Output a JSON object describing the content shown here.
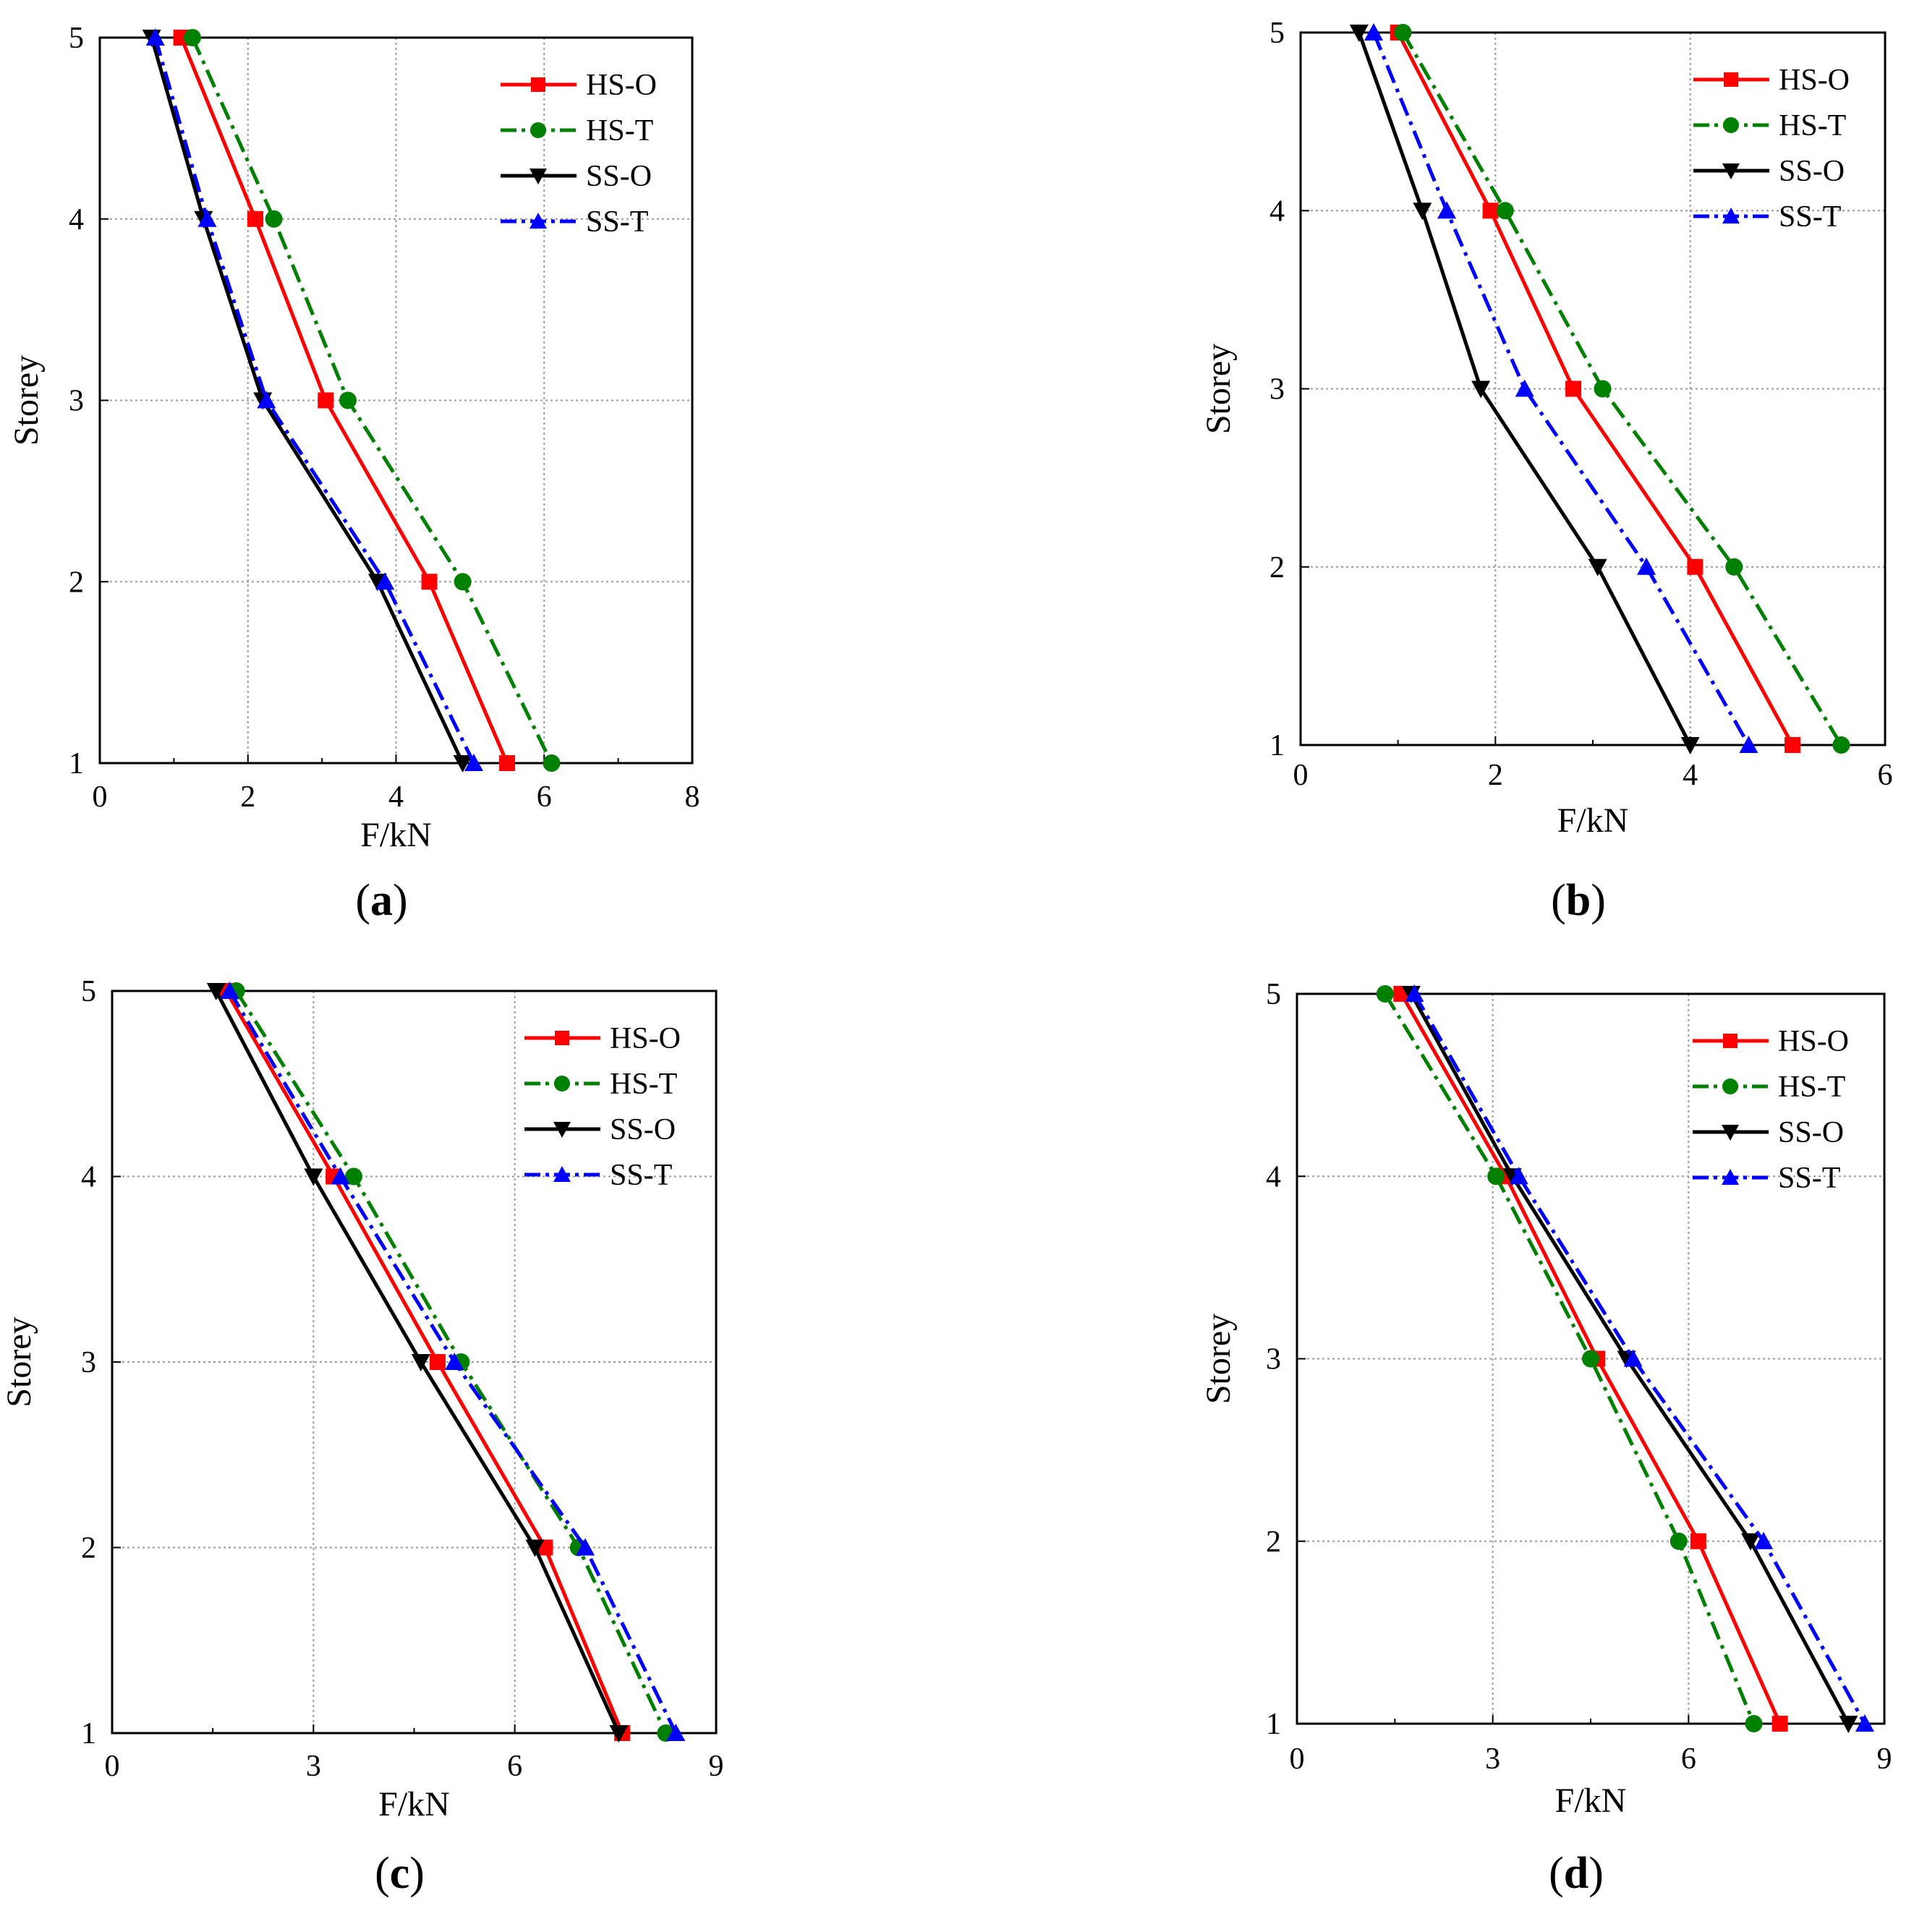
{
  "chart_data": [
    {
      "type": "line",
      "panel_label": "a",
      "xlabel": "F/kN",
      "ylabel": "Storey",
      "xlim": [
        0,
        8
      ],
      "ylim": [
        1,
        5
      ],
      "xticks": [
        0,
        2,
        4,
        6,
        8
      ],
      "yticks": [
        1,
        2,
        3,
        4,
        5
      ],
      "grid": true,
      "legend": "top-right",
      "series": [
        {
          "name": "HS-O",
          "color": "#ff0000",
          "dash": "solid",
          "marker": "square",
          "points": [
            [
              1.1,
              5
            ],
            [
              2.1,
              4
            ],
            [
              3.05,
              3
            ],
            [
              4.45,
              2
            ],
            [
              5.5,
              1
            ]
          ]
        },
        {
          "name": "HS-T",
          "color": "#008000",
          "dash": "dashdot",
          "marker": "circle",
          "points": [
            [
              1.25,
              5
            ],
            [
              2.35,
              4
            ],
            [
              3.35,
              3
            ],
            [
              4.9,
              2
            ],
            [
              6.1,
              1
            ]
          ]
        },
        {
          "name": "SS-O",
          "color": "#000000",
          "dash": "solid",
          "marker": "triangle-down",
          "points": [
            [
              0.7,
              5
            ],
            [
              1.4,
              4
            ],
            [
              2.2,
              3
            ],
            [
              3.75,
              2
            ],
            [
              4.9,
              1
            ]
          ]
        },
        {
          "name": "SS-T",
          "color": "#0000ff",
          "dash": "dashdot",
          "marker": "triangle-up",
          "points": [
            [
              0.75,
              5
            ],
            [
              1.45,
              4
            ],
            [
              2.25,
              3
            ],
            [
              3.85,
              2
            ],
            [
              5.05,
              1
            ]
          ]
        }
      ]
    },
    {
      "type": "line",
      "panel_label": "b",
      "xlabel": "F/kN",
      "ylabel": "Storey",
      "xlim": [
        0,
        6
      ],
      "ylim": [
        1,
        5
      ],
      "xticks": [
        0,
        2,
        4,
        6
      ],
      "yticks": [
        1,
        2,
        3,
        4,
        5
      ],
      "grid": true,
      "legend": "top-right",
      "series": [
        {
          "name": "HS-O",
          "color": "#ff0000",
          "dash": "solid",
          "marker": "square",
          "points": [
            [
              1.0,
              5
            ],
            [
              1.95,
              4
            ],
            [
              2.8,
              3
            ],
            [
              4.05,
              2
            ],
            [
              5.05,
              1
            ]
          ]
        },
        {
          "name": "HS-T",
          "color": "#008000",
          "dash": "dashdot",
          "marker": "circle",
          "points": [
            [
              1.05,
              5
            ],
            [
              2.1,
              4
            ],
            [
              3.1,
              3
            ],
            [
              4.45,
              2
            ],
            [
              5.55,
              1
            ]
          ]
        },
        {
          "name": "SS-O",
          "color": "#000000",
          "dash": "solid",
          "marker": "triangle-down",
          "points": [
            [
              0.6,
              5
            ],
            [
              1.25,
              4
            ],
            [
              1.85,
              3
            ],
            [
              3.05,
              2
            ],
            [
              4.0,
              1
            ]
          ]
        },
        {
          "name": "SS-T",
          "color": "#0000ff",
          "dash": "dashdot",
          "marker": "triangle-up",
          "points": [
            [
              0.75,
              5
            ],
            [
              1.5,
              4
            ],
            [
              2.3,
              3
            ],
            [
              3.55,
              2
            ],
            [
              4.6,
              1
            ]
          ]
        }
      ]
    },
    {
      "type": "line",
      "panel_label": "c",
      "xlabel": "F/kN",
      "ylabel": "Storey",
      "xlim": [
        0,
        9
      ],
      "ylim": [
        1,
        5
      ],
      "xticks": [
        0,
        3,
        6,
        9
      ],
      "yticks": [
        1,
        2,
        3,
        4,
        5
      ],
      "grid": true,
      "legend": "top-right",
      "series": [
        {
          "name": "HS-O",
          "color": "#ff0000",
          "dash": "solid",
          "marker": "square",
          "points": [
            [
              1.7,
              5
            ],
            [
              3.3,
              4
            ],
            [
              4.85,
              3
            ],
            [
              6.45,
              2
            ],
            [
              7.6,
              1
            ]
          ]
        },
        {
          "name": "HS-T",
          "color": "#008000",
          "dash": "dashdot",
          "marker": "circle",
          "points": [
            [
              1.85,
              5
            ],
            [
              3.6,
              4
            ],
            [
              5.2,
              3
            ],
            [
              6.95,
              2
            ],
            [
              8.25,
              1
            ]
          ]
        },
        {
          "name": "SS-O",
          "color": "#000000",
          "dash": "solid",
          "marker": "triangle-down",
          "points": [
            [
              1.55,
              5
            ],
            [
              3.0,
              4
            ],
            [
              4.6,
              3
            ],
            [
              6.3,
              2
            ],
            [
              7.55,
              1
            ]
          ]
        },
        {
          "name": "SS-T",
          "color": "#0000ff",
          "dash": "dashdot",
          "marker": "triangle-up",
          "points": [
            [
              1.75,
              5
            ],
            [
              3.4,
              4
            ],
            [
              5.1,
              3
            ],
            [
              7.05,
              2
            ],
            [
              8.4,
              1
            ]
          ]
        }
      ]
    },
    {
      "type": "line",
      "panel_label": "d",
      "xlabel": "F/kN",
      "ylabel": "Storey",
      "xlim": [
        0,
        9
      ],
      "ylim": [
        1,
        5
      ],
      "xticks": [
        0,
        3,
        6,
        9
      ],
      "yticks": [
        1,
        2,
        3,
        4,
        5
      ],
      "grid": true,
      "legend": "top-right",
      "series": [
        {
          "name": "HS-O",
          "color": "#ff0000",
          "dash": "solid",
          "marker": "square",
          "points": [
            [
              1.6,
              5
            ],
            [
              3.2,
              4
            ],
            [
              4.6,
              3
            ],
            [
              6.15,
              2
            ],
            [
              7.4,
              1
            ]
          ]
        },
        {
          "name": "HS-T",
          "color": "#008000",
          "dash": "dashdot",
          "marker": "circle",
          "points": [
            [
              1.35,
              5
            ],
            [
              3.05,
              4
            ],
            [
              4.5,
              3
            ],
            [
              5.85,
              2
            ],
            [
              7.0,
              1
            ]
          ]
        },
        {
          "name": "SS-O",
          "color": "#000000",
          "dash": "solid",
          "marker": "triangle-down",
          "points": [
            [
              1.75,
              5
            ],
            [
              3.3,
              4
            ],
            [
              5.05,
              3
            ],
            [
              6.95,
              2
            ],
            [
              8.45,
              1
            ]
          ]
        },
        {
          "name": "SS-T",
          "color": "#0000ff",
          "dash": "dashdot",
          "marker": "triangle-up",
          "points": [
            [
              1.8,
              5
            ],
            [
              3.4,
              4
            ],
            [
              5.15,
              3
            ],
            [
              7.15,
              2
            ],
            [
              8.7,
              1
            ]
          ]
        }
      ]
    }
  ]
}
